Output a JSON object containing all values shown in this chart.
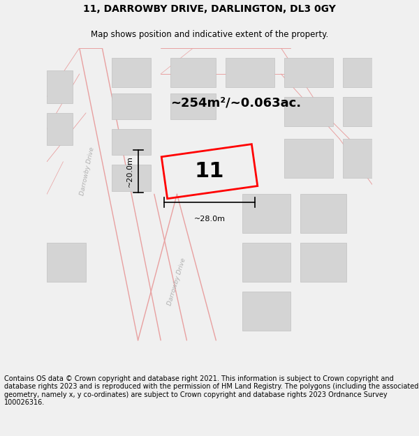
{
  "title_line1": "11, DARROWBY DRIVE, DARLINGTON, DL3 0GY",
  "title_line2": "Map shows position and indicative extent of the property.",
  "footer_text": "Contains OS data © Crown copyright and database right 2021. This information is subject to Crown copyright and database rights 2023 and is reproduced with the permission of HM Land Registry. The polygons (including the associated geometry, namely x, y co-ordinates) are subject to Crown copyright and database rights 2023 Ordnance Survey 100026316.",
  "area_text": "~254m²/~0.063ac.",
  "property_number": "11",
  "width_label": "~28.0m",
  "height_label": "~20.0m",
  "bg_color": "#f0f0f0",
  "map_bg": "#f8f8f8",
  "road_color": "#e8a0a0",
  "building_color": "#d4d4d4",
  "building_edge": "#c0c0c0",
  "property_color": "red",
  "road_label_color": "#b0b0b0",
  "title_fontsize": 10,
  "subtitle_fontsize": 8.5,
  "footer_fontsize": 7.0,
  "area_fontsize": 13,
  "number_fontsize": 22,
  "dim_fontsize": 8
}
